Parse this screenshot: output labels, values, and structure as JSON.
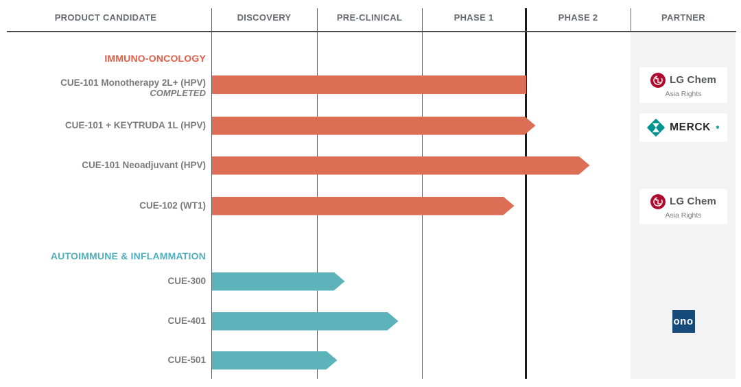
{
  "header": {
    "columns": [
      "PRODUCT CANDIDATE",
      "DISCOVERY",
      "PRE-CLINICAL",
      "PHASE 1",
      "PHASE 2",
      "PARTNER"
    ]
  },
  "colors": {
    "oncology_bar": "#dc6e55",
    "oncology_title": "#e15f48",
    "autoimmune_bar": "#5cb3b9",
    "autoimmune_title": "#4fafba",
    "label_gray": "#7a7a7a",
    "header_gray": "#666b71",
    "grid_line": "#5f5f5f",
    "phase2_line": "#1b1b1b",
    "partner_bg": "#f3f3f3",
    "lg_red": "#ae0c2e",
    "merck_teal": "#009490",
    "ono_navy": "#164a7b"
  },
  "partners": {
    "lgchem": {
      "label": "LG Chem",
      "note": "Asia Rights"
    },
    "merck": {
      "label": "MERCK",
      "reg_mark": "✱"
    },
    "ono": {
      "label": "ono"
    }
  },
  "chart_data": {
    "type": "bar",
    "orientation": "horizontal",
    "phase_axis": [
      "Discovery",
      "Pre-Clinical",
      "Phase 1",
      "Phase 2"
    ],
    "phase_scale_note": "phase_end measured in phase units, 0 = start of Discovery, 4 = end of Phase 2",
    "sections": [
      {
        "title": "IMMUNO-ONCOLOGY",
        "rows": [
          {
            "label": "CUE-101 Monotherapy 2L+ (HPV)",
            "sublabel": "COMPLETED",
            "phase_end": 3.0,
            "arrow": false,
            "partner": "lgchem"
          },
          {
            "label": "CUE-101 + KEYTRUDA 1L (HPV)",
            "phase_end": 3.09,
            "arrow": true,
            "partner": "merck"
          },
          {
            "label": "CUE-101 Neoadjuvant (HPV)",
            "phase_end": 3.61,
            "arrow": true,
            "partner": null
          },
          {
            "label": "CUE-102 (WT1)",
            "phase_end": 2.89,
            "arrow": true,
            "partner": "lgchem"
          }
        ]
      },
      {
        "title": "AUTOIMMUNE & INFLAMMATION",
        "rows": [
          {
            "label": "CUE-300",
            "phase_end": 1.27,
            "arrow": true,
            "partner": null
          },
          {
            "label": "CUE-401",
            "phase_end": 1.78,
            "arrow": true,
            "partner": "ono"
          },
          {
            "label": "CUE-501",
            "phase_end": 1.2,
            "arrow": true,
            "partner": null
          }
        ]
      }
    ]
  }
}
